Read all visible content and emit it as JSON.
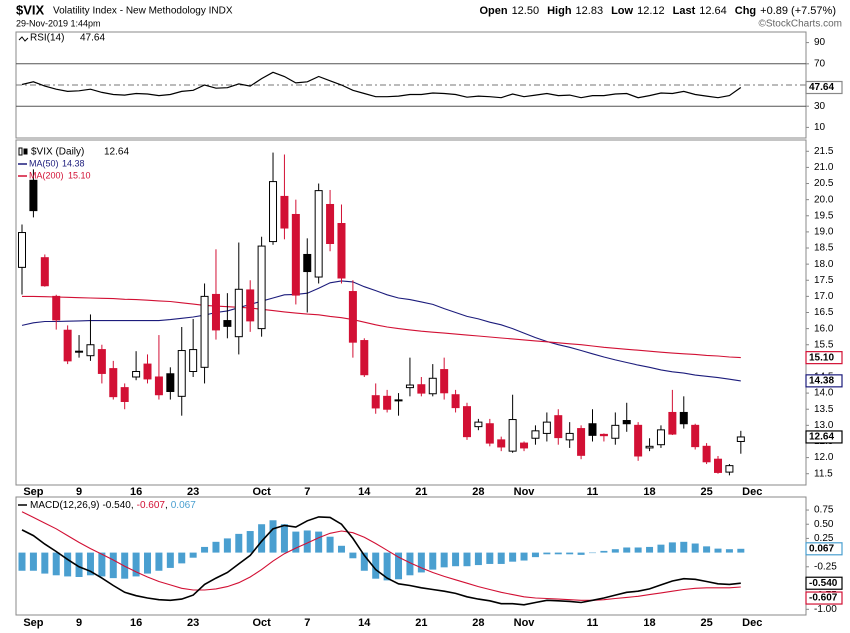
{
  "header": {
    "symbol": "$VIX",
    "description": "Volatility Index - New Methodology INDX",
    "timestamp": "29-Nov-2019 1:44pm",
    "copyright": "©StockCharts.com",
    "quote": [
      {
        "label": "Open",
        "value": "12.50"
      },
      {
        "label": "High",
        "value": "12.83"
      },
      {
        "label": "Low",
        "value": "12.12"
      },
      {
        "label": "Last",
        "value": "12.64"
      },
      {
        "label": "Chg",
        "value": "+0.89 (+7.57%)"
      }
    ]
  },
  "chart_data": [
    {
      "type": "line",
      "name": "RSI(14)",
      "color": "#000000",
      "ylim": [
        0,
        100
      ],
      "yticks": [
        10,
        30,
        70,
        90
      ],
      "levels": [
        30,
        70
      ],
      "center_line": 50,
      "values": [
        50.5,
        53,
        49,
        46,
        44,
        44.5,
        46,
        43,
        41,
        40.5,
        42,
        41.5,
        40,
        41,
        44,
        45,
        50,
        47,
        47.5,
        51,
        49,
        56,
        62,
        58,
        52,
        53,
        58,
        54,
        50,
        45,
        42,
        39,
        39,
        39.5,
        41,
        41,
        42.5,
        42,
        41,
        38.5,
        39.5,
        39,
        38,
        41.5,
        39,
        40.5,
        42,
        40,
        40.5,
        38,
        40,
        40,
        41.5,
        42,
        38,
        40,
        42.5,
        42,
        44,
        41,
        39.5,
        38,
        40,
        47.64,
        null
      ]
    },
    {
      "type": "candlestick",
      "name": "$VIX (Daily)",
      "up_color": "#000000",
      "down_color": "#d21034",
      "ylim": [
        11.15,
        21.85
      ],
      "yticks": [
        11.5,
        {
          "value": 12,
          "label": "12.0"
        },
        12.5,
        {
          "value": 13,
          "label": "13.0"
        },
        13.5,
        {
          "value": 14,
          "label": "14.0"
        },
        14.5,
        {
          "value": 15,
          "label": "15.0"
        },
        15.5,
        {
          "value": 16,
          "label": "16.0"
        },
        16.5,
        {
          "value": 17,
          "label": "17.0"
        },
        17.5,
        {
          "value": 18,
          "label": "18.0"
        },
        18.5,
        {
          "value": 19,
          "label": "19.0"
        },
        19.5,
        {
          "value": 20,
          "label": "20.0"
        },
        20.5,
        {
          "value": 21,
          "label": "21.0"
        },
        21.5
      ],
      "categories": [
        null,
        "Sep",
        null,
        null,
        null,
        "9",
        null,
        null,
        null,
        null,
        "16",
        null,
        null,
        null,
        null,
        "23",
        null,
        null,
        null,
        null,
        null,
        "Oct",
        null,
        null,
        null,
        "7",
        null,
        null,
        null,
        null,
        "14",
        null,
        null,
        null,
        null,
        "21",
        null,
        null,
        null,
        null,
        "28",
        null,
        null,
        null,
        "Nov",
        null,
        null,
        null,
        null,
        null,
        "11",
        null,
        null,
        null,
        null,
        "18",
        null,
        null,
        null,
        null,
        "25",
        null,
        null,
        null,
        "Dec"
      ],
      "open": [
        17.9,
        20.6,
        18.2,
        17.0,
        15.95,
        15.3,
        15.16,
        15.35,
        14.76,
        14.17,
        14.5,
        14.9,
        14.5,
        14.6,
        13.9,
        14.67,
        14.8,
        17.06,
        16.25,
        15.75,
        17.2,
        16.0,
        18.7,
        20.1,
        19.54,
        18.3,
        17.6,
        19.85,
        19.26,
        17.15,
        15.63,
        13.92,
        13.9,
        13.78,
        14.17,
        14.26,
        13.98,
        14.73,
        13.95,
        13.58,
        12.96,
        13.05,
        12.55,
        12.2,
        12.45,
        12.6,
        12.75,
        13.3,
        12.55,
        12.9,
        13.05,
        12.72,
        12.6,
        13.15,
        13.0,
        12.3,
        12.4,
        13.4,
        13.4,
        13.0,
        12.35,
        11.95,
        11.55,
        12.5,
        null
      ],
      "high": [
        19.23,
        20.94,
        18.3,
        17.05,
        16.1,
        15.8,
        16.44,
        15.5,
        15.0,
        14.3,
        15.3,
        15.2,
        15.8,
        14.8,
        16.05,
        16.3,
        17.4,
        18.46,
        17.1,
        18.67,
        17.5,
        18.85,
        21.46,
        21.4,
        20.0,
        18.8,
        20.5,
        20.3,
        19.85,
        17.5,
        15.7,
        14.3,
        14.1,
        14.0,
        15.1,
        14.5,
        14.9,
        15.1,
        14.1,
        13.7,
        13.2,
        13.2,
        12.65,
        13.95,
        12.5,
        13.0,
        13.4,
        13.5,
        13.1,
        13.0,
        13.5,
        12.75,
        13.4,
        13.7,
        13.1,
        12.6,
        13.0,
        14.1,
        13.9,
        13.05,
        12.45,
        12.05,
        11.8,
        12.83,
        null
      ],
      "low": [
        17.06,
        19.45,
        17.3,
        15.97,
        14.9,
        15.1,
        15.0,
        14.3,
        13.8,
        13.5,
        14.4,
        14.3,
        13.8,
        13.8,
        13.3,
        14.5,
        14.3,
        15.66,
        15.7,
        15.2,
        15.9,
        15.75,
        18.6,
        18.77,
        16.75,
        16.5,
        17.4,
        18.4,
        17.4,
        15.1,
        14.5,
        13.36,
        13.4,
        13.3,
        13.9,
        13.9,
        13.9,
        13.8,
        13.4,
        12.55,
        12.85,
        12.35,
        12.2,
        12.15,
        12.2,
        12.4,
        12.5,
        12.4,
        12.3,
        11.95,
        12.5,
        12.5,
        12.4,
        12.8,
        11.9,
        12.2,
        12.3,
        12.7,
        12.9,
        12.25,
        11.8,
        11.5,
        11.45,
        12.12,
        null
      ],
      "close": [
        18.98,
        19.66,
        17.33,
        16.27,
        15.0,
        15.27,
        15.5,
        14.61,
        13.89,
        13.74,
        14.67,
        14.44,
        13.95,
        14.05,
        15.32,
        15.35,
        17.0,
        15.96,
        16.07,
        17.22,
        16.24,
        18.56,
        20.56,
        19.12,
        17.04,
        17.77,
        20.28,
        18.64,
        17.57,
        15.58,
        14.57,
        13.54,
        13.5,
        13.79,
        14.25,
        14.0,
        14.46,
        14.01,
        13.55,
        12.65,
        13.1,
        12.45,
        12.33,
        13.18,
        12.3,
        12.83,
        13.1,
        12.62,
        12.75,
        12.07,
        12.69,
        12.68,
        13.0,
        13.05,
        12.05,
        12.35,
        12.86,
        12.73,
        13.05,
        12.34,
        11.87,
        11.54,
        11.75,
        12.64,
        null
      ],
      "series": [
        {
          "name": "MA(50)",
          "color": "#1c1c7c",
          "last_label": "14.38",
          "values": [
            16.1,
            16.18,
            16.22,
            16.22,
            16.23,
            16.24,
            16.25,
            16.25,
            16.25,
            16.25,
            16.25,
            16.25,
            16.25,
            16.28,
            16.32,
            16.36,
            16.42,
            16.5,
            16.55,
            16.65,
            16.75,
            16.85,
            16.95,
            17.05,
            17.06,
            17.1,
            17.25,
            17.42,
            17.48,
            17.45,
            17.3,
            17.18,
            17.05,
            16.95,
            16.9,
            16.83,
            16.75,
            16.62,
            16.5,
            16.38,
            16.3,
            16.2,
            16.12,
            16.0,
            15.86,
            15.72,
            15.6,
            15.5,
            15.42,
            15.32,
            15.22,
            15.12,
            15.03,
            14.95,
            14.87,
            14.8,
            14.72,
            14.66,
            14.62,
            14.56,
            14.52,
            14.48,
            14.43,
            14.38,
            null
          ]
        },
        {
          "name": "MA(200)",
          "color": "#d21034",
          "last_label": "15.10",
          "values": [
            17.0,
            17.0,
            16.99,
            16.98,
            16.97,
            16.96,
            16.95,
            16.94,
            16.93,
            16.91,
            16.9,
            16.88,
            16.86,
            16.84,
            16.8,
            16.76,
            16.72,
            16.7,
            16.68,
            16.66,
            16.64,
            16.6,
            16.56,
            16.52,
            16.48,
            16.45,
            16.43,
            16.38,
            16.34,
            16.28,
            16.2,
            16.12,
            16.05,
            16.0,
            15.96,
            15.92,
            15.89,
            15.86,
            15.83,
            15.8,
            15.77,
            15.74,
            15.71,
            15.68,
            15.65,
            15.62,
            15.59,
            15.56,
            15.53,
            15.5,
            15.46,
            15.42,
            15.39,
            15.36,
            15.33,
            15.3,
            15.27,
            15.24,
            15.22,
            15.2,
            15.17,
            15.15,
            15.12,
            15.1,
            null
          ]
        }
      ]
    },
    {
      "type": "macd",
      "name": "MACD(12,26,9)",
      "separator": ",",
      "ylim": [
        -1.1,
        0.98
      ],
      "yticks": [
        0.75,
        {
          "value": 0.5,
          "label": "0.50"
        },
        0.25,
        -0.25,
        -0.75,
        {
          "value": -1,
          "label": "-1.00"
        }
      ],
      "macd": {
        "color": "#000000",
        "last_label": "-0.540",
        "values": [
          0.4,
          0.3,
          0.15,
          0.02,
          -0.12,
          -0.25,
          -0.33,
          -0.45,
          -0.58,
          -0.7,
          -0.76,
          -0.8,
          -0.83,
          -0.84,
          -0.82,
          -0.75,
          -0.56,
          -0.45,
          -0.35,
          -0.2,
          -0.05,
          0.2,
          0.42,
          0.48,
          0.45,
          0.56,
          0.63,
          0.62,
          0.5,
          0.25,
          -0.05,
          -0.3,
          -0.45,
          -0.55,
          -0.58,
          -0.62,
          -0.65,
          -0.68,
          -0.72,
          -0.78,
          -0.82,
          -0.85,
          -0.9,
          -0.9,
          -0.92,
          -0.88,
          -0.84,
          -0.85,
          -0.86,
          -0.88,
          -0.84,
          -0.8,
          -0.75,
          -0.7,
          -0.68,
          -0.64,
          -0.57,
          -0.5,
          -0.46,
          -0.47,
          -0.51,
          -0.55,
          -0.56,
          -0.54,
          null
        ]
      },
      "signal": {
        "color": "#d21034",
        "last_label": "-0.607",
        "values": [
          0.72,
          0.62,
          0.52,
          0.42,
          0.3,
          0.18,
          0.07,
          -0.03,
          -0.13,
          -0.24,
          -0.34,
          -0.43,
          -0.51,
          -0.57,
          -0.63,
          -0.66,
          -0.66,
          -0.64,
          -0.6,
          -0.53,
          -0.43,
          -0.3,
          -0.15,
          -0.02,
          0.08,
          0.17,
          0.26,
          0.34,
          0.38,
          0.35,
          0.27,
          0.16,
          0.04,
          -0.08,
          -0.18,
          -0.27,
          -0.35,
          -0.42,
          -0.48,
          -0.54,
          -0.6,
          -0.65,
          -0.7,
          -0.74,
          -0.78,
          -0.8,
          -0.81,
          -0.82,
          -0.83,
          -0.84,
          -0.84,
          -0.83,
          -0.81,
          -0.79,
          -0.77,
          -0.74,
          -0.71,
          -0.68,
          -0.65,
          -0.63,
          -0.62,
          -0.62,
          -0.62,
          -0.607,
          null
        ]
      },
      "histogram": {
        "color": "#4a9fd0",
        "last_label": "0.067",
        "values": [
          -0.32,
          -0.32,
          -0.37,
          -0.4,
          -0.42,
          -0.43,
          -0.4,
          -0.42,
          -0.45,
          -0.46,
          -0.42,
          -0.37,
          -0.32,
          -0.27,
          -0.19,
          -0.09,
          0.1,
          0.19,
          0.25,
          0.33,
          0.38,
          0.5,
          0.57,
          0.5,
          0.37,
          0.39,
          0.37,
          0.28,
          0.12,
          -0.1,
          -0.32,
          -0.46,
          -0.49,
          -0.47,
          -0.4,
          -0.35,
          -0.3,
          -0.26,
          -0.24,
          -0.24,
          -0.22,
          -0.2,
          -0.2,
          -0.16,
          -0.14,
          -0.08,
          -0.03,
          -0.03,
          -0.03,
          -0.04,
          0.0,
          0.03,
          0.06,
          0.09,
          0.09,
          0.1,
          0.14,
          0.18,
          0.19,
          0.16,
          0.11,
          0.07,
          0.06,
          0.067,
          null
        ]
      }
    }
  ]
}
